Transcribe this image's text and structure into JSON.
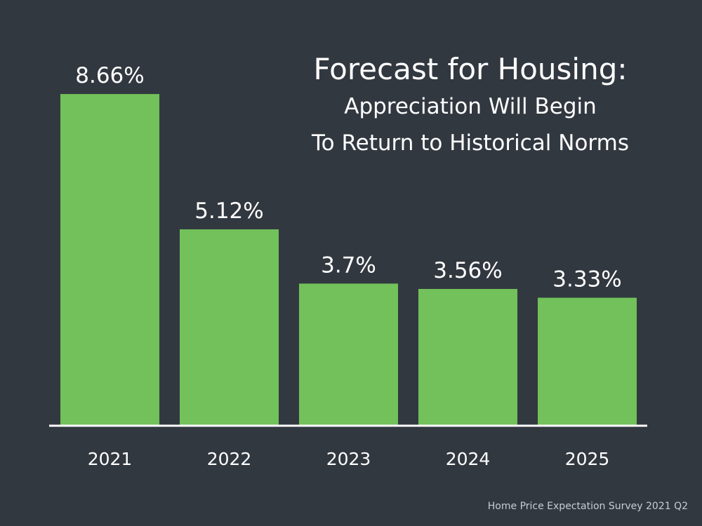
{
  "slide": {
    "background_color": "#323840",
    "source_note": "Home Price Expectation Survey 2021 Q2"
  },
  "chart_data": {
    "type": "bar",
    "title": "Forecast for Housing:",
    "subtitle_lines": [
      "Appreciation Will Begin",
      "To Return to Historical Norms"
    ],
    "categories": [
      "2021",
      "2022",
      "2023",
      "2024",
      "2025"
    ],
    "values": [
      8.66,
      5.12,
      3.7,
      3.56,
      3.33
    ],
    "value_labels": [
      "8.66%",
      "5.12%",
      "3.7%",
      "3.56%",
      "3.33%"
    ],
    "xlabel": "",
    "ylabel": "",
    "ylim": [
      0,
      8.9
    ],
    "grid": false,
    "legend": "none",
    "bar_color": "#72c15a",
    "axis_color": "#ffffff"
  }
}
